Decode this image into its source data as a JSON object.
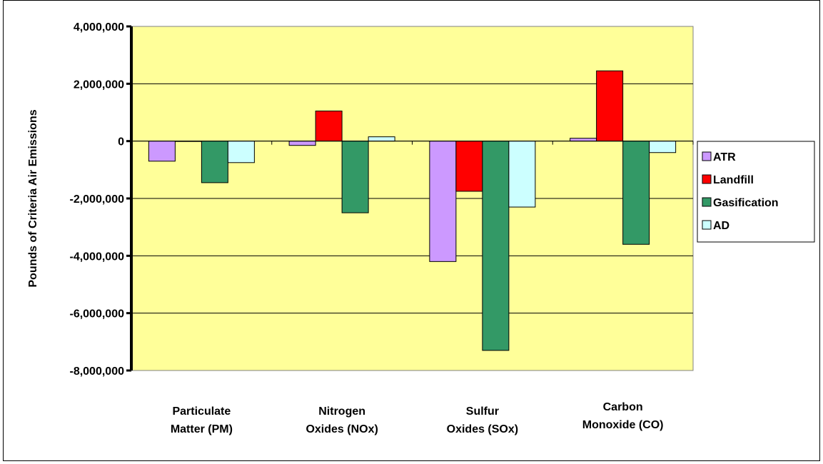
{
  "chart_data": {
    "type": "bar",
    "title": "",
    "xlabel": "",
    "ylabel": "Pounds of Criteria Air Emissions",
    "categories": [
      [
        "Particulate",
        "Matter (PM)"
      ],
      [
        "Nitrogen",
        "Oxides (NOx)"
      ],
      [
        "Sulfur",
        "Oxides (SOx)"
      ],
      [
        "Carbon",
        "Monoxide (CO)"
      ]
    ],
    "series": [
      {
        "name": "ATR",
        "color": "#cc99ff",
        "values": [
          -700000,
          -150000,
          -4200000,
          100000
        ]
      },
      {
        "name": "Landfill",
        "color": "#ff0000",
        "values": [
          0,
          1050000,
          -1750000,
          2450000
        ]
      },
      {
        "name": "Gasification",
        "color": "#339966",
        "values": [
          -1450000,
          -2500000,
          -7300000,
          -3600000
        ]
      },
      {
        "name": "AD",
        "color": "#ccffff",
        "values": [
          -750000,
          150000,
          -2300000,
          -400000
        ]
      }
    ],
    "ylim": [
      -8000000,
      4000000
    ],
    "yticks": [
      4000000,
      2000000,
      0,
      -2000000,
      -4000000,
      -6000000,
      -8000000
    ],
    "ytick_labels": [
      "4,000,000",
      "2,000,000",
      "0",
      "-2,000,000",
      "-4,000,000",
      "-6,000,000",
      "-8,000,000"
    ],
    "grid": true,
    "legend_position": "right",
    "plot_background": "#ffff99"
  }
}
